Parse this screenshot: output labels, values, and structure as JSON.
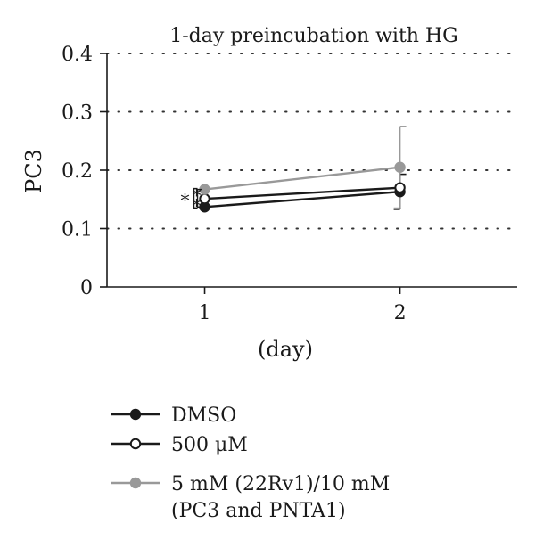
{
  "chart_data": {
    "type": "line",
    "title": "1-day preincubation with HG",
    "xlabel": "(day)",
    "ylabel": "PC3",
    "x": [
      1,
      2
    ],
    "xlim": [
      0.5,
      2.6
    ],
    "ylim": [
      0,
      0.4
    ],
    "yticks": [
      "0",
      "0.1",
      "0.2",
      "0.3",
      "0.4"
    ],
    "xticks": [
      "1",
      "2"
    ],
    "grid": true,
    "legend_position": "bottom-left",
    "series": [
      {
        "name": "DMSO",
        "values": [
          0.137,
          0.163
        ],
        "errors": [
          0,
          0.03
        ],
        "color": "#1a1a1a",
        "marker_fill": "#1a1a1a"
      },
      {
        "name": "500 μM",
        "values": [
          0.151,
          0.17
        ],
        "errors": [
          0,
          0
        ],
        "color": "#1a1a1a",
        "marker_fill": "#ffffff"
      },
      {
        "name": "5 mM (22Rv1)/10 mM\n(PC3 and PNTA1)",
        "values": [
          0.167,
          0.205
        ],
        "errors": [
          0,
          0.07
        ],
        "color": "#999999",
        "marker_fill": "#999999"
      }
    ],
    "annotations": [
      {
        "text": "*",
        "x": 1,
        "between": [
          "DMSO",
          "500 μM"
        ]
      },
      {
        "text": "*",
        "x": 1,
        "between": [
          "500 μM",
          "5 mM (22Rv1)/10 mM\n(PC3 and PNTA1)"
        ]
      },
      {
        "text": "*",
        "x": 1,
        "between": [
          "DMSO",
          "5 mM (22Rv1)/10 mM\n(PC3 and PNTA1)"
        ]
      }
    ]
  }
}
